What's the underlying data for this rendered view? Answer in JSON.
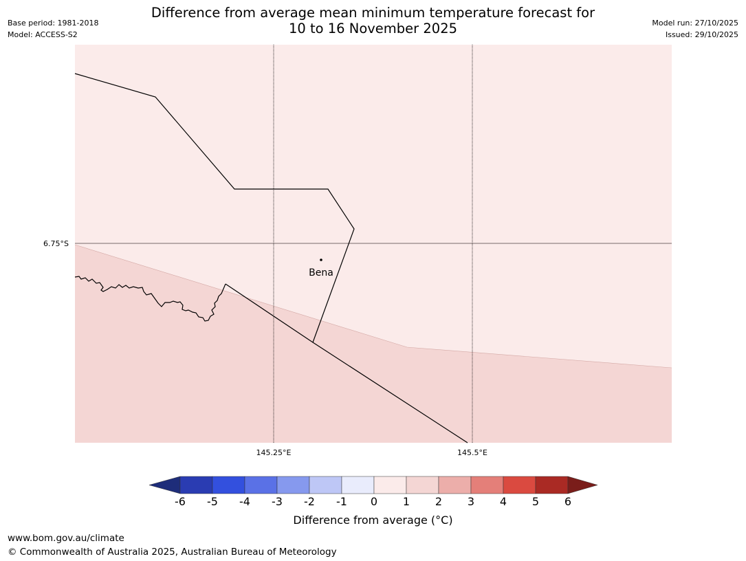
{
  "header": {
    "base_period": "Base period: 1981-2018",
    "model": "Model: ACCESS-S2",
    "title_line1": "Difference from average mean minimum temperature forecast for",
    "title_line2": "10 to 16 November 2025",
    "model_run": "Model run: 27/10/2025",
    "issued": "Issued: 29/10/2025"
  },
  "map": {
    "lat_labels": [
      "6.75°S"
    ],
    "lon_labels": [
      "145.25°E",
      "145.5°E"
    ],
    "place": "Bena",
    "colors": {
      "zero_to_one": "#fbebea",
      "one_to_two": "#f4d6d4",
      "border": "#000000",
      "grid": "#000000"
    }
  },
  "colorbar": {
    "ticks": [
      "-6",
      "-5",
      "-4",
      "-3",
      "-2",
      "-1",
      "0",
      "1",
      "2",
      "3",
      "4",
      "5",
      "6"
    ],
    "colors": [
      "#1e2d7a",
      "#2a3cb2",
      "#3350de",
      "#5a71e6",
      "#8699ee",
      "#bec7f6",
      "#e9ecfc",
      "#fbebea",
      "#f4d6d4",
      "#ecaeaa",
      "#e47f79",
      "#da4a40",
      "#aa2a24",
      "#7a1d1a"
    ],
    "label": "Difference from average (°C)"
  },
  "footer": {
    "url": "www.bom.gov.au/climate",
    "copyright": "© Commonwealth of Australia 2025, Australian Bureau of Meteorology"
  }
}
